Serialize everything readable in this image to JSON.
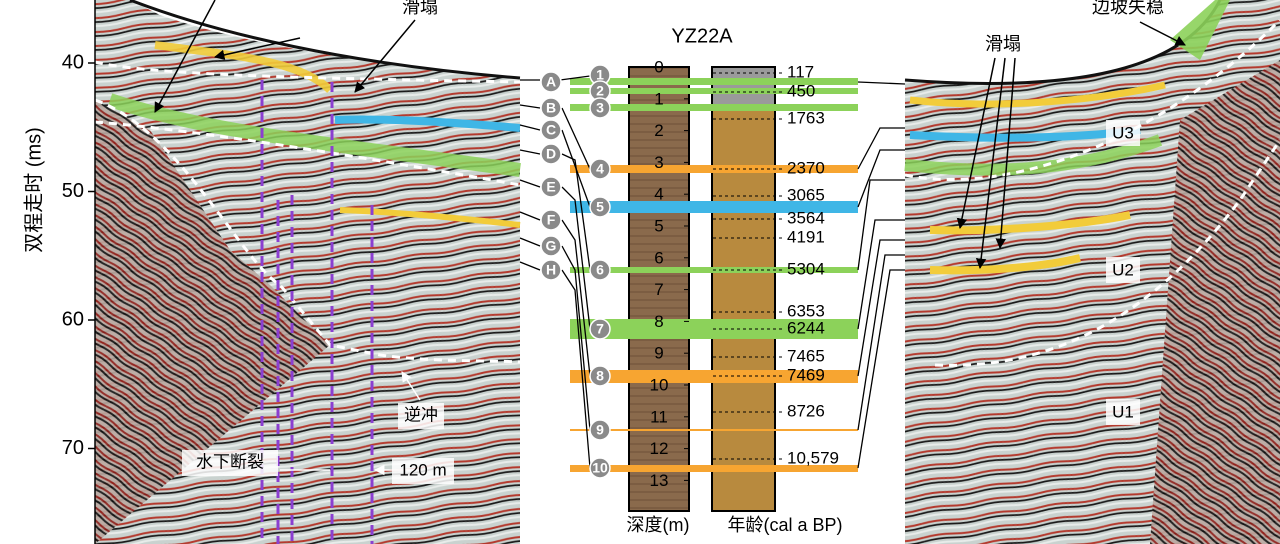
{
  "left_axis": {
    "label": "双程走时 (ms)",
    "ticks": [
      40,
      50,
      60,
      70
    ]
  },
  "left_profile": {
    "annotations": [
      "滑塌",
      "水下断裂",
      "逆冲",
      "120 m"
    ]
  },
  "right_profile": {
    "annotations": [
      "边坡失稳",
      "滑塌",
      "U3",
      "U2",
      "U1"
    ]
  },
  "core": {
    "title": "YZ22A",
    "depth_ticks": [
      0,
      1,
      2,
      3,
      4,
      5,
      6,
      7,
      8,
      9,
      10,
      11,
      12,
      13
    ],
    "depth_label": "深度(m)",
    "age_label": "年龄(cal a BP)",
    "ages": [
      "117",
      "450",
      "1763",
      "2370",
      "3065",
      "3564",
      "4191",
      "5304",
      "6353",
      "6244",
      "7465",
      "7469",
      "8726",
      "10,579"
    ]
  },
  "horizons": [
    "A",
    "B",
    "C",
    "D",
    "E",
    "F",
    "G",
    "H"
  ],
  "markers": [
    1,
    2,
    3,
    4,
    5,
    6,
    7,
    8,
    9,
    10
  ]
}
